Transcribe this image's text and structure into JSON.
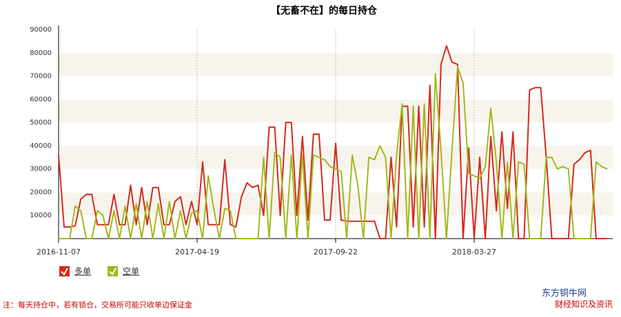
{
  "chart_data": {
    "type": "line",
    "title": "【无畜不在】的每日持仓",
    "categories": [
      "2016-11-07",
      null,
      null,
      null,
      null,
      null,
      null,
      null,
      null,
      null,
      null,
      null,
      null,
      null,
      null,
      null,
      null,
      null,
      null,
      null,
      null,
      null,
      null,
      null,
      null,
      "2017-04-19",
      null,
      null,
      null,
      null,
      null,
      null,
      null,
      null,
      null,
      null,
      null,
      null,
      null,
      null,
      null,
      null,
      null,
      null,
      null,
      null,
      null,
      null,
      null,
      null,
      "2017-09-22",
      null,
      null,
      null,
      null,
      null,
      null,
      null,
      null,
      null,
      null,
      null,
      null,
      null,
      null,
      null,
      null,
      null,
      null,
      null,
      null,
      null,
      null,
      null,
      null,
      "2018-03-27",
      null,
      null,
      null,
      null,
      null,
      null,
      null,
      null,
      null,
      null,
      null,
      null,
      null,
      null,
      null,
      null,
      null,
      null,
      null,
      null,
      null,
      null,
      null,
      null
    ],
    "series": [
      {
        "name": "多单",
        "color": "#d42a1c",
        "values": [
          36000,
          5000,
          5000,
          5500,
          17000,
          19000,
          19000,
          6000,
          6000,
          6000,
          19000,
          6000,
          6000,
          23000,
          6000,
          22000,
          6000,
          22000,
          22000,
          6000,
          6000,
          16000,
          18000,
          6000,
          16000,
          6000,
          33000,
          6000,
          6000,
          6000,
          34000,
          6000,
          5000,
          18000,
          24000,
          22000,
          23000,
          10000,
          48000,
          48000,
          10000,
          50000,
          50000,
          10000,
          44000,
          8000,
          45000,
          45000,
          8000,
          8000,
          41000,
          8000,
          7500,
          7500,
          7500,
          7500,
          7500,
          7500,
          0,
          0,
          35000,
          5000,
          57000,
          57000,
          5000,
          57000,
          5000,
          66000,
          0,
          75000,
          83000,
          76000,
          75000,
          0,
          39000,
          0,
          35000,
          0,
          44000,
          12000,
          46000,
          13000,
          46000,
          0,
          0,
          64000,
          65000,
          65000,
          35000,
          0,
          0,
          0,
          0,
          32000,
          34000,
          37000,
          38000,
          0,
          0,
          0
        ]
      },
      {
        "name": "空单",
        "color": "#a3b81c",
        "values": [
          0,
          0,
          0,
          14000,
          12000,
          0,
          0,
          12000,
          10000,
          0,
          12000,
          0,
          14000,
          0,
          15000,
          0,
          16000,
          0,
          15000,
          0,
          16000,
          0,
          12000,
          0,
          11000,
          12000,
          0,
          27000,
          13000,
          0,
          13000,
          12000,
          0,
          0,
          0,
          0,
          0,
          35000,
          0,
          37000,
          35000,
          0,
          36000,
          0,
          36000,
          0,
          36000,
          35000,
          34000,
          31000,
          30000,
          29000,
          0,
          36000,
          23000,
          0,
          35000,
          34000,
          40000,
          35000,
          0,
          36000,
          58000,
          0,
          57000,
          0,
          58000,
          0,
          71000,
          38000,
          0,
          38000,
          74000,
          67000,
          28000,
          27000,
          26000,
          31000,
          56000,
          33000,
          0,
          33000,
          0,
          33000,
          32000,
          0,
          0,
          0,
          35000,
          35000,
          30000,
          31000,
          30000,
          0,
          0,
          0,
          0,
          33000,
          31000,
          30000
        ]
      }
    ],
    "ylim": [
      0,
      90000
    ],
    "yticks": [
      10000,
      20000,
      30000,
      40000,
      50000,
      60000,
      70000,
      80000,
      90000
    ],
    "grid": true,
    "note": "注：每天持仓中，若有锁仓，交易所可能只收单边保证金",
    "source": "东方铜牛网",
    "source_sub": "财经知识及资讯"
  }
}
